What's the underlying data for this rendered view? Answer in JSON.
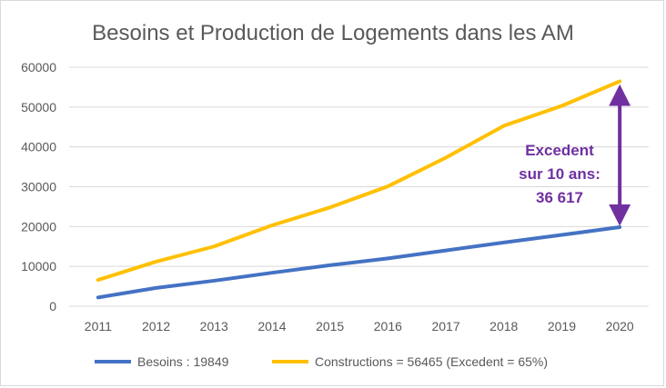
{
  "chart_data": {
    "type": "line",
    "title": "Besoins et Production de Logements dans les AM",
    "xlabel": "",
    "ylabel": "",
    "categories": [
      "2011",
      "2012",
      "2013",
      "2014",
      "2015",
      "2016",
      "2017",
      "2018",
      "2019",
      "2020"
    ],
    "ylim": [
      0,
      60000
    ],
    "yticks": [
      0,
      10000,
      20000,
      30000,
      40000,
      50000,
      60000
    ],
    "grid": true,
    "legend_position": "bottom",
    "series": [
      {
        "name": "Besoins : 19849",
        "color": "#4472c4",
        "values": [
          2200,
          4600,
          6400,
          8400,
          10300,
          12000,
          14000,
          16000,
          17900,
          19849
        ]
      },
      {
        "name": "Constructions = 56465 (Excedent = 65%)",
        "color": "#ffc000",
        "values": [
          6600,
          11200,
          15000,
          20300,
          24800,
          30100,
          37300,
          45300,
          50300,
          56465
        ]
      }
    ],
    "annotation": {
      "lines": [
        "Excedent",
        "sur 10 ans:",
        "36 617"
      ],
      "color": "#7030a0",
      "arrow_x_category": "2020",
      "arrow_from_value": 19849,
      "arrow_to_value": 56465
    }
  }
}
